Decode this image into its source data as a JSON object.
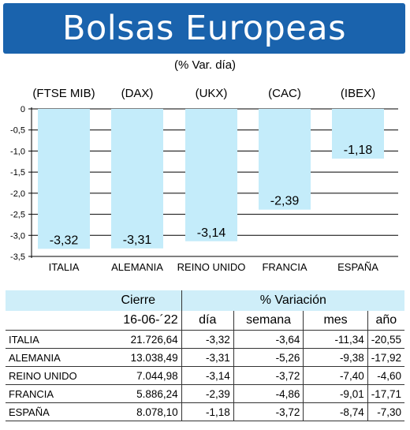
{
  "title": "Bolsas Europeas",
  "subtitle": "(% Var. día)",
  "chart_data": {
    "type": "bar",
    "categories": [
      "ITALIA",
      "ALEMANIA",
      "REINO UNIDO",
      "FRANCIA",
      "ESPAÑA"
    ],
    "index_labels": [
      "(FTSE MIB)",
      "(DAX)",
      "(UKX)",
      "(CAC)",
      "(IBEX)"
    ],
    "values": [
      -3.32,
      -3.31,
      -3.14,
      -2.39,
      -1.18
    ],
    "value_labels": [
      "-3,32",
      "-3,31",
      "-3,14",
      "-2,39",
      "-1,18"
    ],
    "yticks": [
      "0",
      "-0,5",
      "-1,0",
      "-1,5",
      "-2,0",
      "-2,5",
      "-3,0",
      "-3,5"
    ],
    "ylim": [
      -3.5,
      0
    ],
    "grid": true,
    "bar_color": "#c4ecfa"
  },
  "table": {
    "group_headers": {
      "cierre": "Cierre",
      "variacion": "% Variación"
    },
    "date": "16-06-´22",
    "columns": [
      "día",
      "semana",
      "mes",
      "año"
    ],
    "rows": [
      {
        "name": "ITALIA",
        "cierre": "21.726,64",
        "dia": "-3,32",
        "semana": "-3,64",
        "mes": "-11,34",
        "ano": "-20,55"
      },
      {
        "name": "ALEMANIA",
        "cierre": "13.038,49",
        "dia": "-3,31",
        "semana": "-5,26",
        "mes": "-9,38",
        "ano": "-17,92"
      },
      {
        "name": "REINO UNIDO",
        "cierre": "7.044,98",
        "dia": "-3,14",
        "semana": "-3,72",
        "mes": "-7,40",
        "ano": "-4,60"
      },
      {
        "name": "FRANCIA",
        "cierre": "5.886,24",
        "dia": "-2,39",
        "semana": "-4,86",
        "mes": "-9,01",
        "ano": "-17,71"
      },
      {
        "name": "ESPAÑA",
        "cierre": "8.078,10",
        "dia": "-1,18",
        "semana": "-3,72",
        "mes": "-8,74",
        "ano": "-7,30"
      }
    ],
    "header_bg": "#cfeef9"
  },
  "colors": {
    "banner": "#1a63ad",
    "banner_text": "#ffffff"
  }
}
